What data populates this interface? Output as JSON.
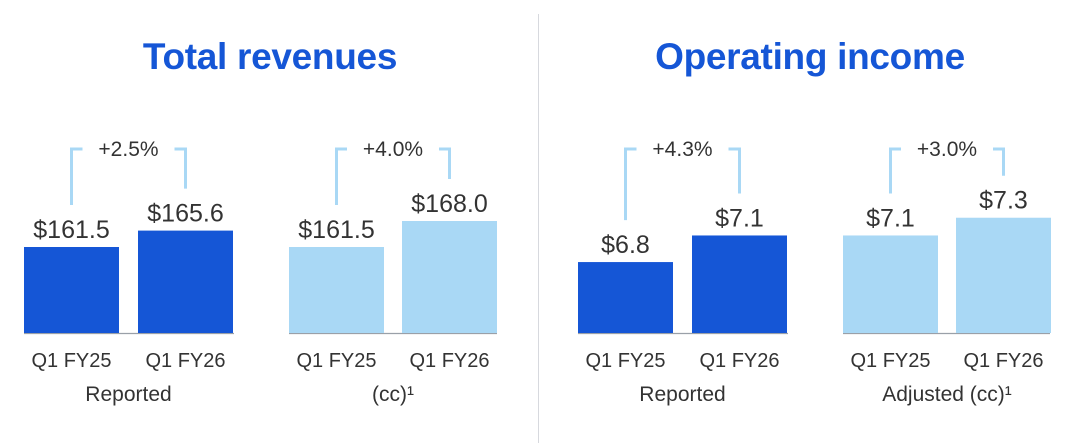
{
  "chart_data": [
    {
      "type": "bar",
      "title": "Total revenues",
      "groups": [
        {
          "label": "Reported",
          "change": "+2.5%",
          "bars": [
            {
              "category": "Q1 FY25",
              "value": 161.5,
              "label": "$161.5",
              "color": "#1556d6"
            },
            {
              "category": "Q1 FY26",
              "value": 165.6,
              "label": "$165.6",
              "color": "#1556d6"
            }
          ]
        },
        {
          "label": "(cc)¹",
          "change": "+4.0%",
          "bars": [
            {
              "category": "Q1 FY25",
              "value": 161.5,
              "label": "$161.5",
              "color": "#a9d8f5"
            },
            {
              "category": "Q1 FY26",
              "value": 168.0,
              "label": "$168.0",
              "color": "#a9d8f5"
            }
          ]
        }
      ]
    },
    {
      "type": "bar",
      "title": "Operating income",
      "groups": [
        {
          "label": "Reported",
          "change": "+4.3%",
          "bars": [
            {
              "category": "Q1 FY25",
              "value": 6.8,
              "label": "$6.8",
              "color": "#1556d6"
            },
            {
              "category": "Q1 FY26",
              "value": 7.1,
              "label": "$7.1",
              "color": "#1556d6"
            }
          ]
        },
        {
          "label": "Adjusted (cc)¹",
          "change": "+3.0%",
          "bars": [
            {
              "category": "Q1 FY25",
              "value": 7.1,
              "label": "$7.1",
              "color": "#a9d8f5"
            },
            {
              "category": "Q1 FY26",
              "value": 7.3,
              "label": "$7.3",
              "color": "#a9d8f5"
            }
          ]
        }
      ]
    }
  ],
  "colors": {
    "title": "#1556d6",
    "bracket": "#a9d8f5",
    "baseline": "#9aa0a8",
    "text": "#333333"
  }
}
